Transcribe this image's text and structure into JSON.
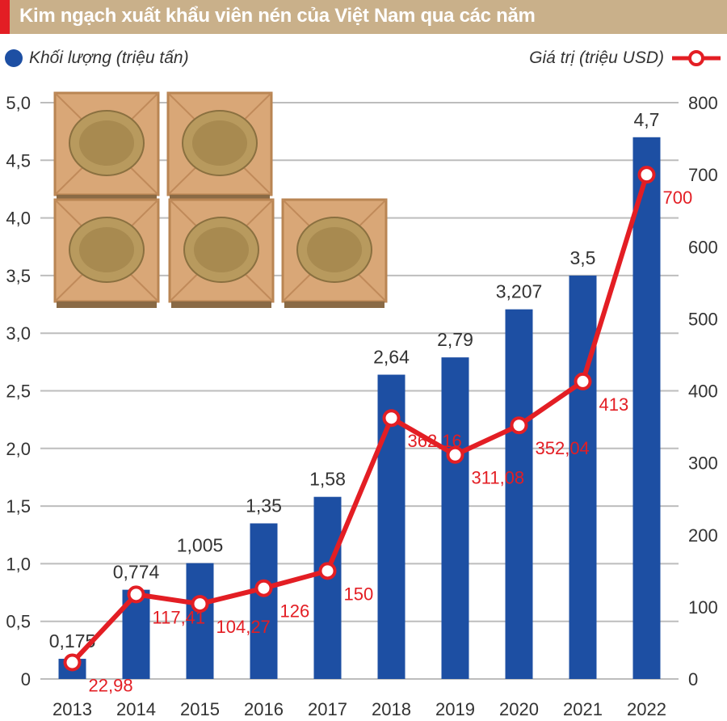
{
  "title": "Kim ngạch xuất khẩu viên nén của Việt Nam qua các năm",
  "colors": {
    "bar": "#1d4fa3",
    "line": "#e31e24",
    "title_bg": "#c9b08a",
    "crate": "#d9a777"
  },
  "legend": {
    "left_label": "Khối lượng (triệu tấn)",
    "right_label": "Giá trị (triệu USD)"
  },
  "illustration": {
    "icon": "wood-pellet-crates-icon",
    "count": 5
  },
  "chart_data": {
    "type": "bar",
    "categories": [
      "2013",
      "2014",
      "2015",
      "2016",
      "2017",
      "2018",
      "2019",
      "2020",
      "2021",
      "2022"
    ],
    "series": [
      {
        "name": "Khối lượng (triệu tấn)",
        "type": "bar",
        "axis": "left",
        "values": [
          0.175,
          0.774,
          1.005,
          1.35,
          1.58,
          2.64,
          2.79,
          3.207,
          3.5,
          4.7
        ],
        "labels": [
          "0,175",
          "0,774",
          "1,005",
          "1,35",
          "1,58",
          "2,64",
          "2,79",
          "3,207",
          "3,5",
          "4,7"
        ]
      },
      {
        "name": "Giá trị (triệu USD)",
        "type": "line",
        "axis": "right",
        "values": [
          22.98,
          117.41,
          104.27,
          126,
          150,
          362.16,
          311.08,
          352.04,
          413,
          700
        ],
        "labels": [
          "22,98",
          "117,41",
          "104,27",
          "126",
          "150",
          "362,16",
          "311,08",
          "352,04",
          "413",
          "700"
        ]
      }
    ],
    "y_left": {
      "min": 0,
      "max": 5,
      "ticks": [
        "0",
        "0,5",
        "1,0",
        "1,5",
        "2,0",
        "2,5",
        "3,0",
        "3,5",
        "4,0",
        "4,5",
        "5,0"
      ]
    },
    "y_right": {
      "min": 0,
      "max": 800,
      "ticks": [
        "0",
        "100",
        "200",
        "300",
        "400",
        "500",
        "600",
        "700",
        "800"
      ]
    },
    "grid": true,
    "legend_placement": "top"
  }
}
